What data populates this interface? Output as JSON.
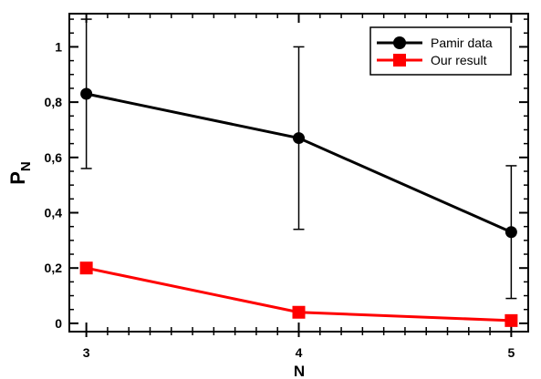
{
  "chart_data": {
    "type": "line",
    "title": "",
    "xlabel": "N",
    "ylabel_main": "P",
    "ylabel_sub": "N",
    "x": [
      3,
      4,
      5
    ],
    "x_ticks": [
      "3",
      "4",
      "5"
    ],
    "xlim": [
      2.92,
      5.08
    ],
    "ylim": [
      -0.03,
      1.12
    ],
    "y_ticks": [
      "0",
      "0,2",
      "0,4",
      "0,6",
      "0,8",
      "1"
    ],
    "y_tick_values": [
      0,
      0.2,
      0.4,
      0.6,
      0.8,
      1.0
    ],
    "legend_position": "top-right",
    "grid": false,
    "series": [
      {
        "name": "Pamir data",
        "values": [
          0.83,
          0.67,
          0.33
        ],
        "error_lower": [
          0.56,
          0.34,
          0.09
        ],
        "error_upper": [
          1.1,
          1.0,
          0.57
        ],
        "color": "#000000",
        "marker": "circle"
      },
      {
        "name": "Our result",
        "values": [
          0.2,
          0.04,
          0.01
        ],
        "color": "#ff0000",
        "marker": "square"
      }
    ]
  }
}
